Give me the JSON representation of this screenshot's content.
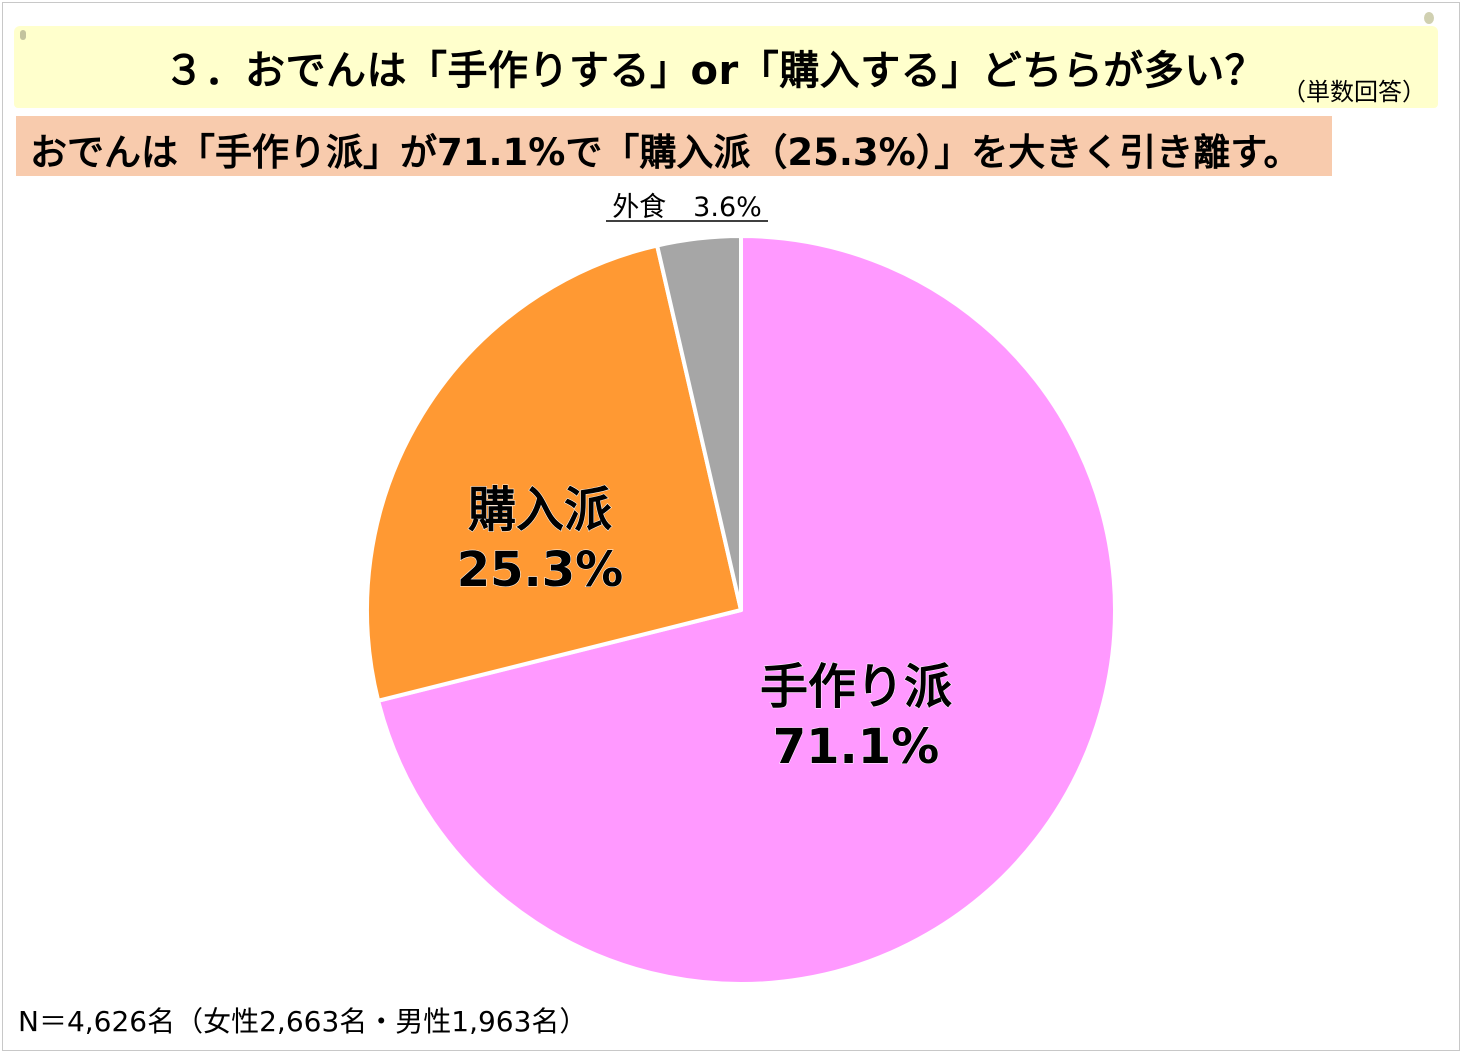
{
  "header": {
    "title": "３．おでんは「手作りする」or「購入する」どちらが多い？",
    "note": "（単数回答）"
  },
  "summary": "おでんは「手作り派」が71.1%で「購入派（25.3%）」を大きく引き離す。",
  "chart_data": {
    "type": "pie",
    "start_angle_deg": 0,
    "direction": "clockwise",
    "slices": [
      {
        "name": "手作り派",
        "value": 71.1,
        "label": "71.1%",
        "color": "#ff99ff"
      },
      {
        "name": "購入派",
        "value": 25.3,
        "label": "25.3%",
        "color": "#ff9933"
      },
      {
        "name": "外食",
        "value": 3.6,
        "label": "3.6%",
        "color": "#a6a6a6"
      }
    ],
    "outside_label": "外食　3.6%"
  },
  "footer": {
    "sample_note": "N＝4,626名（女性2,663名・男性1,963名）"
  }
}
